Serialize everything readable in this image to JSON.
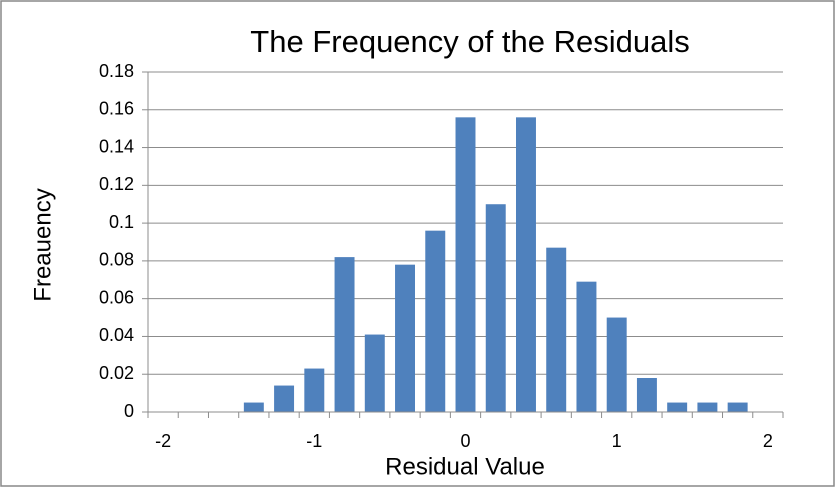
{
  "chart_data": {
    "type": "bar",
    "title": "The Frequency of the Residuals",
    "x_label": "Residual Value",
    "y_label": "Freauency",
    "categories": [
      "-2",
      null,
      null,
      null,
      null,
      "-1",
      null,
      null,
      null,
      null,
      "0",
      null,
      null,
      null,
      null,
      "1",
      null,
      null,
      null,
      null,
      "2"
    ],
    "values": [
      0,
      0,
      0,
      0.005,
      0.014,
      0.023,
      0.082,
      0.041,
      0.078,
      0.096,
      0.156,
      0.11,
      0.156,
      0.087,
      0.069,
      0.05,
      0.018,
      0.005,
      0.005,
      0.005,
      0
    ],
    "color": "#4f81bd",
    "ylim": [
      0,
      0.18
    ],
    "yticks": [
      0,
      0.02,
      0.04,
      0.06,
      0.08,
      0.1,
      0.12,
      0.14,
      0.16,
      0.18
    ],
    "grid": true
  }
}
